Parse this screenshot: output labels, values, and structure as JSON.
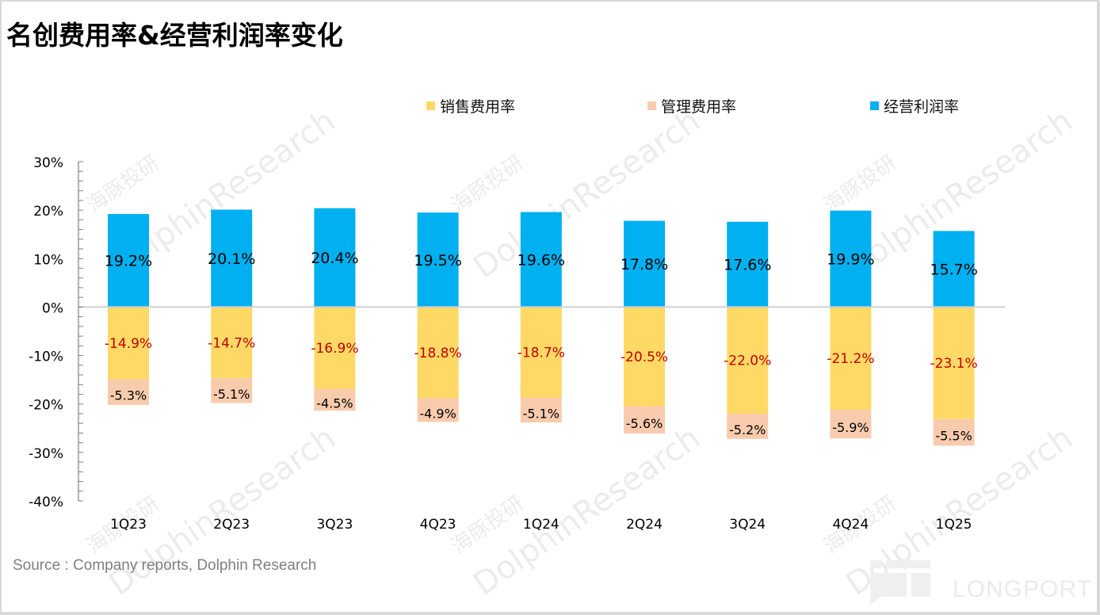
{
  "title": "名创费用率&经营利润率变化",
  "source": "Source : Company reports, Dolphin Research",
  "watermarks": {
    "cn": "海豚投研",
    "en": "DolphinResearch",
    "brand": "LONGPORT"
  },
  "colors": {
    "selling": "#FFD966",
    "admin": "#F8CBAD",
    "operating": "#00B0F0",
    "selling_label": "#C00000",
    "admin_label": "#000000",
    "operating_label": "#000000",
    "zero_line": "#d0d0d0",
    "axis": "#808080"
  },
  "chart_data": {
    "type": "bar",
    "stacked": true,
    "title": "名创费用率&经营利润率变化",
    "xlabel": "",
    "ylabel": "",
    "ylim": [
      -40,
      30
    ],
    "yticks": [
      30,
      20,
      10,
      0,
      -10,
      -20,
      -30,
      -40
    ],
    "ytick_labels": [
      "30%",
      "20%",
      "10%",
      "0%",
      "-10%",
      "-20%",
      "-30%",
      "-40%"
    ],
    "grid": false,
    "legend_position": "top",
    "categories": [
      "1Q23",
      "2Q23",
      "3Q23",
      "4Q23",
      "1Q24",
      "2Q24",
      "3Q24",
      "4Q24",
      "1Q25"
    ],
    "series": [
      {
        "name": "销售费用率",
        "key": "selling",
        "values": [
          -14.9,
          -14.7,
          -16.9,
          -18.8,
          -18.7,
          -20.5,
          -22.0,
          -21.2,
          -23.1
        ],
        "labels": [
          "-14.9%",
          "-14.7%",
          "-16.9%",
          "-18.8%",
          "-18.7%",
          "-20.5%",
          "-22.0%",
          "-21.2%",
          "-23.1%"
        ]
      },
      {
        "name": "管理费用率",
        "key": "admin",
        "values": [
          -5.3,
          -5.1,
          -4.5,
          -4.9,
          -5.1,
          -5.6,
          -5.2,
          -5.9,
          -5.5
        ],
        "labels": [
          "-5.3%",
          "-5.1%",
          "-4.5%",
          "-4.9%",
          "-5.1%",
          "-5.6%",
          "-5.2%",
          "-5.9%",
          "-5.5%"
        ]
      },
      {
        "name": "经营利润率",
        "key": "operating",
        "values": [
          19.2,
          20.1,
          20.4,
          19.5,
          19.6,
          17.8,
          17.6,
          19.9,
          15.7
        ],
        "labels": [
          "19.2%",
          "20.1%",
          "20.4%",
          "19.5%",
          "19.6%",
          "17.8%",
          "17.6%",
          "19.9%",
          "15.7%"
        ]
      }
    ]
  }
}
